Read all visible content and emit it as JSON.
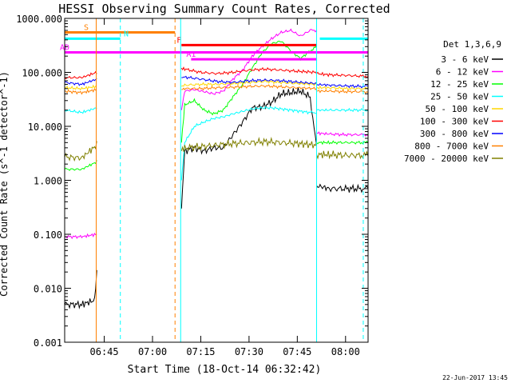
{
  "chart_data": {
    "type": "line",
    "title": "HESSI Observing Summary Count Rates, Corrected",
    "xlabel": "Start Time (18-Oct-14 06:32:42)",
    "ylabel": "Corrected Count Rate (s^-1 detector^-1)",
    "yscale": "log",
    "ylim": [
      0.001,
      1000
    ],
    "xlim": [
      "06:32:42",
      "08:07:00"
    ],
    "x_ticks": [
      "06:45",
      "07:00",
      "07:15",
      "07:30",
      "07:45",
      "08:00"
    ],
    "y_ticks": [
      "1000.000",
      "100.000",
      "10.000",
      "1.000",
      "0.100",
      "0.010",
      "0.001"
    ],
    "legend_title": "Det 1,3,6,9",
    "legend_position": "right",
    "footer_date": "22-Jun-2017 13:45",
    "colors": {
      "orange": "#ff8000",
      "cyan": "#00ffff",
      "red": "#ff0000",
      "magenta": "#ff00ff",
      "black": "#000000",
      "green": "#00ff00",
      "blue": "#0000ff",
      "brown": "#808000",
      "frame": "#000000"
    },
    "flags": [
      {
        "label": "S",
        "color": "#ff8000",
        "y_rate": 550,
        "start": "06:32:42",
        "end": "07:07:00"
      },
      {
        "label": "N",
        "color": "#00ffff",
        "y_rate": 420,
        "start": "06:32:42",
        "end": "06:50:00",
        "start2": "07:52:00",
        "end2": "08:07:00"
      },
      {
        "label": "F",
        "color": "#ff0000",
        "y_rate": 320,
        "start": "07:09:00",
        "end": "07:51:00"
      },
      {
        "label": "AD",
        "color": "#ff00ff",
        "y_rate": 235,
        "start": "06:32:42",
        "end": "08:07:00"
      },
      {
        "label": "A1",
        "color": "#ff00ff",
        "y_rate": 175,
        "start": "07:12:00",
        "end": "07:51:00"
      }
    ],
    "vlines": [
      {
        "time": "06:42:30",
        "color": "#ff8000",
        "style": "solid"
      },
      {
        "time": "06:50:00",
        "color": "#00ffff",
        "style": "dashed"
      },
      {
        "time": "07:07:00",
        "color": "#ff8000",
        "style": "dashed"
      },
      {
        "time": "07:08:45",
        "color": "#00ffff",
        "style": "solid"
      },
      {
        "time": "07:51:00",
        "color": "#00ffff",
        "style": "solid"
      },
      {
        "time": "08:05:30",
        "color": "#00ffff",
        "style": "dashed"
      }
    ],
    "series": [
      {
        "name": "3 - 6 keV",
        "color": "#000000",
        "segments": [
          {
            "x": [
              "06:32:42",
              "06:38:00",
              "06:42:00",
              "06:42:40"
            ],
            "y": [
              0.005,
              0.005,
              0.006,
              0.02
            ]
          },
          {
            "x": [
              "07:09:00",
              "07:10:00",
              "07:13:00",
              "07:16:00",
              "07:19:00",
              "07:22:00",
              "07:25:00",
              "07:28:00",
              "07:31:00",
              "07:34:00",
              "07:37:00",
              "07:40:00",
              "07:43:00",
              "07:46:00",
              "07:49:00",
              "07:51:00"
            ],
            "y": [
              0.3,
              3.5,
              4.0,
              3.5,
              4.0,
              4.0,
              7,
              12,
              22,
              23,
              28,
              40,
              42,
              45,
              35,
              4
            ]
          },
          {
            "x": [
              "07:51:00",
              "07:55:00",
              "08:00:00",
              "08:05:00",
              "08:07:00"
            ],
            "y": [
              0.8,
              0.7,
              0.7,
              0.7,
              0.7
            ]
          }
        ]
      },
      {
        "name": "6 - 12 keV",
        "color": "#ff00ff",
        "segments": [
          {
            "x": [
              "06:32:42",
              "06:38:00",
              "06:42:40"
            ],
            "y": [
              0.09,
              0.09,
              0.1
            ]
          },
          {
            "x": [
              "07:09:00",
              "07:10:00",
              "07:13:00",
              "07:16:00",
              "07:19:00",
              "07:22:00",
              "07:25:00",
              "07:28:00",
              "07:31:00",
              "07:34:00",
              "07:37:00",
              "07:40:00",
              "07:43:00",
              "07:46:00",
              "07:49:00",
              "07:51:00"
            ],
            "y": [
              20,
              45,
              48,
              44,
              40,
              45,
              75,
              110,
              200,
              300,
              420,
              550,
              600,
              470,
              600,
              600
            ]
          },
          {
            "x": [
              "07:51:00",
              "07:55:00",
              "08:00:00",
              "08:05:00",
              "08:07:00"
            ],
            "y": [
              7.5,
              7.2,
              7.0,
              7.0,
              7.0
            ]
          }
        ]
      },
      {
        "name": "12 - 25 keV",
        "color": "#00ff00",
        "segments": [
          {
            "x": [
              "06:32:42",
              "06:38:00",
              "06:42:40"
            ],
            "y": [
              1.6,
              1.6,
              2.2
            ]
          },
          {
            "x": [
              "07:09:00",
              "07:10:00",
              "07:13:00",
              "07:16:00",
              "07:19:00",
              "07:22:00",
              "07:25:00",
              "07:28:00",
              "07:31:00",
              "07:34:00",
              "07:37:00",
              "07:40:00",
              "07:43:00",
              "07:46:00",
              "07:49:00",
              "07:51:00"
            ],
            "y": [
              5,
              25,
              30,
              20,
              17,
              20,
              35,
              60,
              120,
              230,
              340,
              380,
              250,
              180,
              250,
              300
            ]
          },
          {
            "x": [
              "07:51:00",
              "07:55:00",
              "08:00:00",
              "08:05:00",
              "08:07:00"
            ],
            "y": [
              5.0,
              5.0,
              5.0,
              5.0,
              5.0
            ]
          }
        ]
      },
      {
        "name": "25 - 50 keV",
        "color": "#00ffff",
        "segments": [
          {
            "x": [
              "06:32:42",
              "06:38:00",
              "06:42:40"
            ],
            "y": [
              20,
              18,
              22
            ]
          },
          {
            "x": [
              "07:09:00",
              "07:10:00",
              "07:13:00",
              "07:16:00",
              "07:19:00",
              "07:22:00",
              "07:25:00",
              "07:28:00",
              "07:31:00",
              "07:34:00",
              "07:37:00",
              "07:40:00",
              "07:43:00",
              "07:46:00",
              "07:49:00",
              "07:51:00"
            ],
            "y": [
              1.0,
              5,
              10,
              12,
              14,
              15,
              17,
              19,
              21,
              22,
              22,
              21,
              20,
              19,
              18,
              18
            ]
          },
          {
            "x": [
              "07:51:00",
              "07:55:00",
              "08:00:00",
              "08:05:00",
              "08:07:00"
            ],
            "y": [
              20,
              20,
              20,
              20,
              20
            ]
          }
        ]
      },
      {
        "name": "50 - 100 keV",
        "color": "#ffd700",
        "segments": [
          {
            "x": [
              "06:32:42",
              "06:38:00",
              "06:42:40"
            ],
            "y": [
              52,
              50,
              55
            ]
          },
          {
            "x": [
              "07:09:00",
              "07:10:00",
              "07:15:00",
              "07:20:00",
              "07:25:00",
              "07:30:00",
              "07:35:00",
              "07:40:00",
              "07:45:00",
              "07:51:00"
            ],
            "y": [
              55,
              58,
              60,
              60,
              62,
              65,
              68,
              65,
              62,
              60
            ]
          },
          {
            "x": [
              "07:51:00",
              "07:55:00",
              "08:00:00",
              "08:05:00",
              "08:07:00"
            ],
            "y": [
              52,
              52,
              50,
              50,
              50
            ]
          }
        ]
      },
      {
        "name": "100 - 300 keV",
        "color": "#ff0000",
        "segments": [
          {
            "x": [
              "06:32:42",
              "06:38:00",
              "06:42:40"
            ],
            "y": [
              80,
              80,
              100
            ]
          },
          {
            "x": [
              "07:09:00",
              "07:10:00",
              "07:15:00",
              "07:20:00",
              "07:25:00",
              "07:30:00",
              "07:35:00",
              "07:40:00",
              "07:45:00",
              "07:51:00"
            ],
            "y": [
              120,
              115,
              100,
              95,
              100,
              110,
              115,
              110,
              105,
              100
            ]
          },
          {
            "x": [
              "07:51:00",
              "07:55:00",
              "08:00:00",
              "08:05:00",
              "08:07:00"
            ],
            "y": [
              95,
              90,
              88,
              85,
              85
            ]
          }
        ]
      },
      {
        "name": "300 - 800 keV",
        "color": "#0000ff",
        "segments": [
          {
            "x": [
              "06:32:42",
              "06:38:00",
              "06:42:40"
            ],
            "y": [
              65,
              60,
              75
            ]
          },
          {
            "x": [
              "07:09:00",
              "07:10:00",
              "07:15:00",
              "07:20:00",
              "07:25:00",
              "07:30:00",
              "07:35:00",
              "07:40:00",
              "07:45:00",
              "07:51:00"
            ],
            "y": [
              80,
              82,
              75,
              68,
              65,
              70,
              72,
              70,
              66,
              62
            ]
          },
          {
            "x": [
              "07:51:00",
              "07:55:00",
              "08:00:00",
              "08:05:00",
              "08:07:00"
            ],
            "y": [
              60,
              58,
              56,
              55,
              55
            ]
          }
        ]
      },
      {
        "name": "800 - 7000 keV",
        "color": "#ff8000",
        "segments": [
          {
            "x": [
              "06:32:42",
              "06:38:00",
              "06:42:40"
            ],
            "y": [
              45,
              42,
              48
            ]
          },
          {
            "x": [
              "07:09:00",
              "07:10:00",
              "07:15:00",
              "07:20:00",
              "07:25:00",
              "07:30:00",
              "07:35:00",
              "07:40:00",
              "07:45:00",
              "07:51:00"
            ],
            "y": [
              48,
              50,
              50,
              52,
              53,
              55,
              56,
              54,
              52,
              50
            ]
          },
          {
            "x": [
              "07:51:00",
              "07:55:00",
              "08:00:00",
              "08:05:00",
              "08:07:00"
            ],
            "y": [
              45,
              45,
              44,
              44,
              44
            ]
          }
        ]
      },
      {
        "name": "7000 - 20000 keV",
        "color": "#808000",
        "segments": [
          {
            "x": [
              "06:32:42",
              "06:38:00",
              "06:42:40"
            ],
            "y": [
              2.7,
              2.6,
              4.5
            ]
          },
          {
            "x": [
              "07:09:00",
              "07:10:00",
              "07:15:00",
              "07:20:00",
              "07:25:00",
              "07:30:00",
              "07:35:00",
              "07:40:00",
              "07:45:00",
              "07:51:00"
            ],
            "y": [
              3.5,
              4.0,
              4.2,
              4.5,
              4.8,
              5.0,
              5.2,
              5.0,
              4.8,
              4.5
            ]
          },
          {
            "x": [
              "07:51:00",
              "07:55:00",
              "08:00:00",
              "08:05:00",
              "08:07:00"
            ],
            "y": [
              3.0,
              3.0,
              2.9,
              2.9,
              2.9
            ]
          }
        ]
      }
    ]
  }
}
